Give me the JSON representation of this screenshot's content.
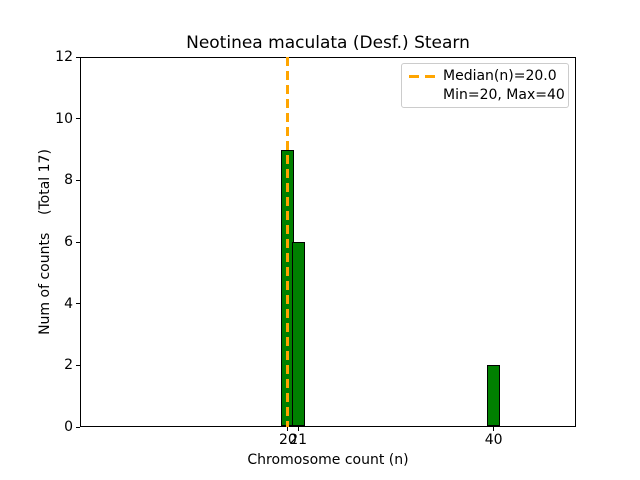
{
  "chart_data": {
    "type": "bar",
    "title": "Neotinea maculata (Desf.) Stearn",
    "xlabel": "Chromosome count (n)",
    "ylabel": "Num of counts    (Total 17)",
    "total_counts": 17,
    "categories": [
      20,
      21,
      40
    ],
    "values": [
      9,
      6,
      2
    ],
    "median": 20.0,
    "min": 20,
    "max": 40,
    "xlim": [
      -0.2,
      48
    ],
    "ylim": [
      0,
      12
    ],
    "xticks": [
      20,
      21,
      40
    ],
    "yticks": [
      0,
      2,
      4,
      6,
      8,
      10,
      12
    ],
    "bar_width_units": 1.25,
    "grid": false,
    "colors": {
      "bar_fill": "#008000",
      "bar_edge": "#000000",
      "median_line": "#FFA500",
      "axes": "#000000",
      "legend_border": "#cccccc"
    },
    "legend": {
      "position": "upper right",
      "entries": [
        {
          "label": "Median(n)=20.0",
          "swatch": "orange-dashed-line"
        },
        {
          "label": "Min=20, Max=40",
          "swatch": "none"
        }
      ]
    }
  }
}
